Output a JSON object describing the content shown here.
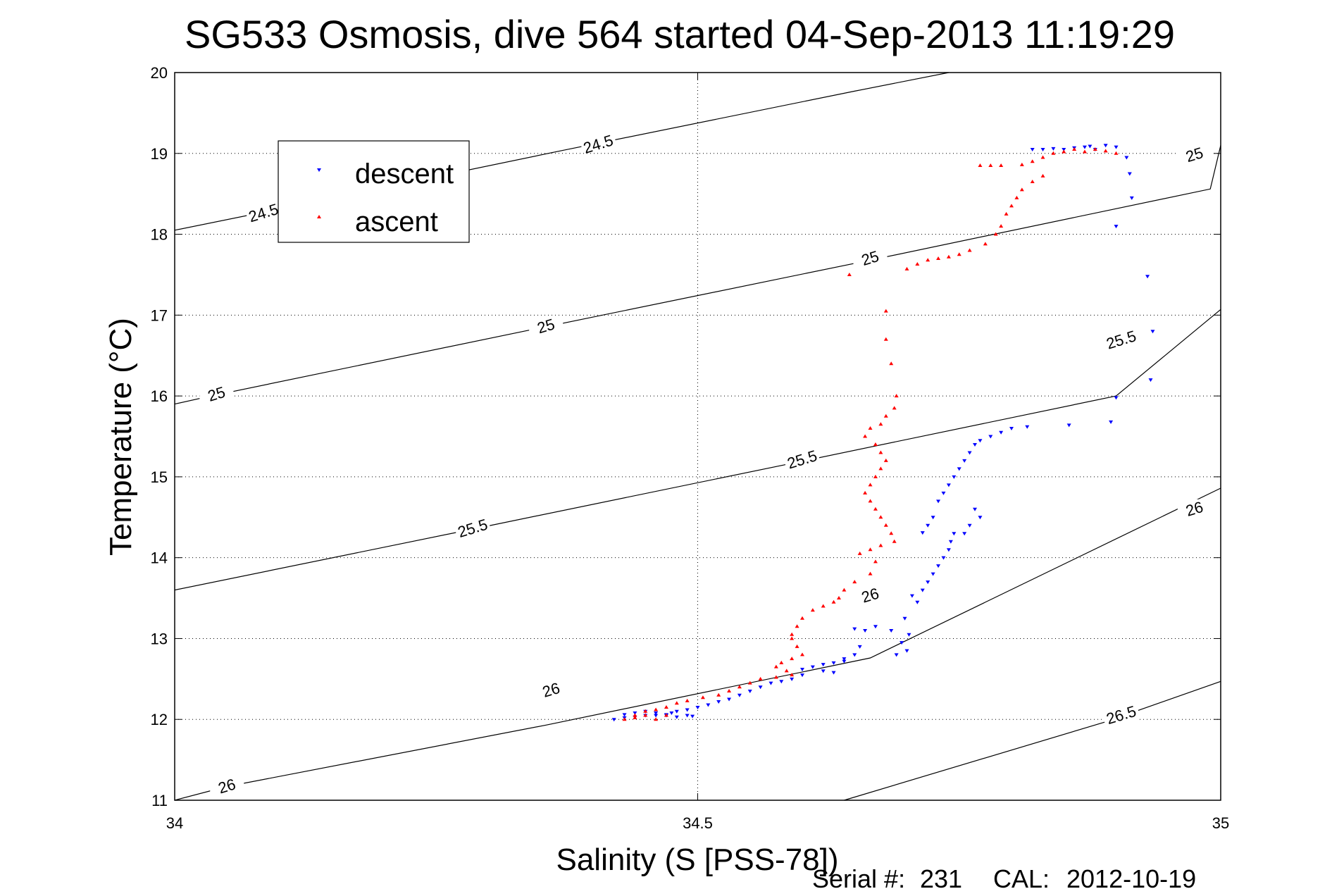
{
  "chart_data": {
    "type": "scatter",
    "title": "SG533 Osmosis, dive 564 started 04-Sep-2013 11:19:29",
    "xlabel": "Salinity (S [PSS-78])",
    "ylabel": "Temperature (°C)",
    "xlim": [
      34,
      35
    ],
    "ylim": [
      11,
      20
    ],
    "xticks": [
      34,
      34.5,
      35
    ],
    "xtick_labels": [
      "34",
      "34.5",
      "35"
    ],
    "yticks": [
      11,
      12,
      13,
      14,
      15,
      16,
      17,
      18,
      19,
      20
    ],
    "ytick_labels": [
      "11",
      "12",
      "13",
      "14",
      "15",
      "16",
      "17",
      "18",
      "19",
      "20"
    ],
    "grid": true,
    "legend": {
      "position": "top-left",
      "entries": [
        {
          "label": "descent",
          "color": "#0000ff",
          "marker": "triangle-down"
        },
        {
          "label": "ascent",
          "color": "#ff0000",
          "marker": "triangle-up"
        }
      ]
    },
    "density_contours": [
      {
        "level": "24.5",
        "points": [
          [
            34,
            18.05
          ],
          [
            34.156,
            18.46
          ],
          [
            34.372,
            19.04
          ],
          [
            34.65,
            19.77
          ],
          [
            34.74,
            20
          ]
        ],
        "labels": [
          {
            "text": "24.5",
            "x": 34.085,
            "y": 18.26
          },
          {
            "text": "24.5",
            "x": 34.405,
            "y": 19.11
          }
        ]
      },
      {
        "level": "25",
        "points": [
          [
            34,
            15.9
          ],
          [
            34.031,
            15.99
          ],
          [
            34.345,
            16.83
          ],
          [
            34.665,
            17.68
          ],
          [
            34.99,
            18.56
          ],
          [
            35,
            19.1
          ]
        ],
        "labels": [
          {
            "text": "25",
            "x": 34.04,
            "y": 16.02
          },
          {
            "text": "25",
            "x": 34.355,
            "y": 16.86
          },
          {
            "text": "25",
            "x": 34.665,
            "y": 17.7
          },
          {
            "text": "25",
            "x": 34.975,
            "y": 18.98
          }
        ]
      },
      {
        "level": "25.5",
        "points": [
          [
            34,
            13.6
          ],
          [
            34.28,
            14.34
          ],
          [
            34.595,
            15.18
          ],
          [
            34.9,
            16
          ],
          [
            35,
            17.07
          ]
        ],
        "labels": [
          {
            "text": "25.5",
            "x": 34.285,
            "y": 14.36
          },
          {
            "text": "25.5",
            "x": 34.6,
            "y": 15.21
          },
          {
            "text": "25.5",
            "x": 34.905,
            "y": 16.69
          }
        ]
      },
      {
        "level": "26",
        "points": [
          [
            34,
            11
          ],
          [
            34.05,
            11.17
          ],
          [
            34.355,
            11.93
          ],
          [
            34.665,
            12.76
          ],
          [
            35,
            14.86
          ]
        ],
        "labels": [
          {
            "text": "26",
            "x": 34.05,
            "y": 11.17
          },
          {
            "text": "26",
            "x": 34.36,
            "y": 12.36
          },
          {
            "text": "26",
            "x": 34.665,
            "y": 13.53
          },
          {
            "text": "26",
            "x": 34.975,
            "y": 14.6
          }
        ]
      },
      {
        "level": "26.5",
        "points": [
          [
            34.64,
            11
          ],
          [
            34.89,
            11.97
          ],
          [
            35,
            12.47
          ]
        ],
        "labels": [
          {
            "text": "26.5",
            "x": 34.905,
            "y": 12.05
          }
        ]
      }
    ],
    "series": [
      {
        "name": "descent",
        "color": "#0000ff",
        "marker": "triangle-down",
        "points": [
          [
            34.82,
            19.05
          ],
          [
            34.83,
            19.05
          ],
          [
            34.84,
            19.06
          ],
          [
            34.85,
            19.05
          ],
          [
            34.86,
            19.07
          ],
          [
            34.87,
            19.08
          ],
          [
            34.875,
            19.09
          ],
          [
            34.88,
            19.05
          ],
          [
            34.89,
            19.1
          ],
          [
            34.9,
            19.08
          ],
          [
            34.91,
            18.95
          ],
          [
            34.913,
            18.75
          ],
          [
            34.915,
            18.45
          ],
          [
            34.9,
            18.1
          ],
          [
            34.93,
            17.48
          ],
          [
            34.935,
            16.8
          ],
          [
            34.933,
            16.2
          ],
          [
            34.9,
            15.98
          ],
          [
            34.895,
            15.68
          ],
          [
            34.855,
            15.64
          ],
          [
            34.815,
            15.62
          ],
          [
            34.8,
            15.6
          ],
          [
            34.79,
            15.55
          ],
          [
            34.78,
            15.5
          ],
          [
            34.77,
            15.45
          ],
          [
            34.765,
            15.4
          ],
          [
            34.76,
            15.3
          ],
          [
            34.755,
            15.2
          ],
          [
            34.75,
            15.1
          ],
          [
            34.745,
            15.0
          ],
          [
            34.74,
            14.9
          ],
          [
            34.735,
            14.8
          ],
          [
            34.73,
            14.7
          ],
          [
            34.725,
            14.5
          ],
          [
            34.72,
            14.4
          ],
          [
            34.715,
            14.31
          ],
          [
            34.755,
            14.3
          ],
          [
            34.76,
            14.4
          ],
          [
            34.765,
            14.6
          ],
          [
            34.77,
            14.5
          ],
          [
            34.745,
            14.3
          ],
          [
            34.742,
            14.2
          ],
          [
            34.74,
            14.1
          ],
          [
            34.735,
            14.0
          ],
          [
            34.73,
            13.9
          ],
          [
            34.725,
            13.8
          ],
          [
            34.72,
            13.7
          ],
          [
            34.715,
            13.6
          ],
          [
            34.705,
            13.53
          ],
          [
            34.71,
            13.45
          ],
          [
            34.698,
            13.25
          ],
          [
            34.702,
            13.05
          ],
          [
            34.695,
            12.95
          ],
          [
            34.7,
            12.85
          ],
          [
            34.69,
            12.8
          ],
          [
            34.685,
            13.1
          ],
          [
            34.67,
            13.15
          ],
          [
            34.66,
            13.1
          ],
          [
            34.65,
            13.12
          ],
          [
            34.655,
            12.9
          ],
          [
            34.65,
            12.8
          ],
          [
            34.64,
            12.75
          ],
          [
            34.64,
            12.72
          ],
          [
            34.63,
            12.7
          ],
          [
            34.62,
            12.68
          ],
          [
            34.61,
            12.65
          ],
          [
            34.6,
            12.62
          ],
          [
            34.62,
            12.6
          ],
          [
            34.63,
            12.58
          ],
          [
            34.6,
            12.55
          ],
          [
            34.59,
            12.5
          ],
          [
            34.58,
            12.47
          ],
          [
            34.57,
            12.45
          ],
          [
            34.56,
            12.4
          ],
          [
            34.55,
            12.35
          ],
          [
            34.54,
            12.3
          ],
          [
            34.53,
            12.25
          ],
          [
            34.52,
            12.22
          ],
          [
            34.51,
            12.18
          ],
          [
            34.5,
            12.15
          ],
          [
            34.49,
            12.12
          ],
          [
            34.48,
            12.1
          ],
          [
            34.475,
            12.08
          ],
          [
            34.47,
            12.06
          ],
          [
            34.46,
            12.05
          ],
          [
            34.45,
            12.05
          ],
          [
            34.44,
            12.03
          ],
          [
            34.43,
            12.02
          ],
          [
            34.42,
            12.0
          ],
          [
            34.43,
            12.06
          ],
          [
            34.44,
            12.08
          ],
          [
            34.45,
            12.1
          ],
          [
            34.46,
            12.08
          ],
          [
            34.47,
            12.05
          ],
          [
            34.48,
            12.03
          ],
          [
            34.49,
            12.05
          ],
          [
            34.495,
            12.04
          ]
        ]
      },
      {
        "name": "ascent",
        "color": "#ff0000",
        "marker": "triangle-up",
        "points": [
          [
            34.77,
            18.85
          ],
          [
            34.78,
            18.85
          ],
          [
            34.79,
            18.85
          ],
          [
            34.81,
            18.86
          ],
          [
            34.82,
            18.9
          ],
          [
            34.83,
            18.95
          ],
          [
            34.84,
            19.0
          ],
          [
            34.85,
            19.02
          ],
          [
            34.86,
            19.05
          ],
          [
            34.87,
            19.02
          ],
          [
            34.88,
            19.05
          ],
          [
            34.89,
            19.03
          ],
          [
            34.9,
            19.0
          ],
          [
            34.83,
            18.72
          ],
          [
            34.82,
            18.65
          ],
          [
            34.81,
            18.55
          ],
          [
            34.805,
            18.45
          ],
          [
            34.8,
            18.35
          ],
          [
            34.795,
            18.25
          ],
          [
            34.79,
            18.1
          ],
          [
            34.785,
            18.0
          ],
          [
            34.775,
            17.88
          ],
          [
            34.76,
            17.8
          ],
          [
            34.75,
            17.75
          ],
          [
            34.74,
            17.72
          ],
          [
            34.73,
            17.7
          ],
          [
            34.72,
            17.68
          ],
          [
            34.71,
            17.63
          ],
          [
            34.7,
            17.57
          ],
          [
            34.645,
            17.5
          ],
          [
            34.68,
            17.05
          ],
          [
            34.68,
            16.7
          ],
          [
            34.685,
            16.4
          ],
          [
            34.69,
            16.0
          ],
          [
            34.688,
            15.85
          ],
          [
            34.68,
            15.75
          ],
          [
            34.675,
            15.65
          ],
          [
            34.665,
            15.6
          ],
          [
            34.66,
            15.5
          ],
          [
            34.67,
            15.4
          ],
          [
            34.675,
            15.3
          ],
          [
            34.68,
            15.2
          ],
          [
            34.675,
            15.1
          ],
          [
            34.67,
            15.0
          ],
          [
            34.665,
            14.9
          ],
          [
            34.66,
            14.8
          ],
          [
            34.665,
            14.7
          ],
          [
            34.67,
            14.6
          ],
          [
            34.675,
            14.5
          ],
          [
            34.68,
            14.4
          ],
          [
            34.685,
            14.3
          ],
          [
            34.688,
            14.2
          ],
          [
            34.675,
            14.15
          ],
          [
            34.665,
            14.1
          ],
          [
            34.655,
            14.05
          ],
          [
            34.67,
            13.95
          ],
          [
            34.665,
            13.8
          ],
          [
            34.65,
            13.7
          ],
          [
            34.64,
            13.6
          ],
          [
            34.635,
            13.5
          ],
          [
            34.63,
            13.45
          ],
          [
            34.62,
            13.4
          ],
          [
            34.61,
            13.35
          ],
          [
            34.6,
            13.25
          ],
          [
            34.595,
            13.15
          ],
          [
            34.59,
            13.05
          ],
          [
            34.59,
            13.0
          ],
          [
            34.595,
            12.9
          ],
          [
            34.6,
            12.8
          ],
          [
            34.59,
            12.75
          ],
          [
            34.58,
            12.7
          ],
          [
            34.575,
            12.65
          ],
          [
            34.585,
            12.6
          ],
          [
            34.59,
            12.55
          ],
          [
            34.575,
            12.52
          ],
          [
            34.56,
            12.5
          ],
          [
            34.55,
            12.45
          ],
          [
            34.54,
            12.4
          ],
          [
            34.53,
            12.35
          ],
          [
            34.52,
            12.3
          ],
          [
            34.505,
            12.27
          ],
          [
            34.49,
            12.23
          ],
          [
            34.48,
            12.2
          ],
          [
            34.47,
            12.15
          ],
          [
            34.46,
            12.12
          ],
          [
            34.45,
            12.1
          ],
          [
            34.44,
            12.05
          ],
          [
            34.43,
            12.0
          ],
          [
            34.44,
            12.02
          ],
          [
            34.45,
            12.05
          ],
          [
            34.46,
            12.0
          ],
          [
            34.47,
            12.05
          ]
        ]
      }
    ]
  },
  "footer": {
    "serial_label": "Serial #:",
    "serial_value": "231",
    "cal_label": "CAL:",
    "cal_value": "2012-10-19"
  }
}
